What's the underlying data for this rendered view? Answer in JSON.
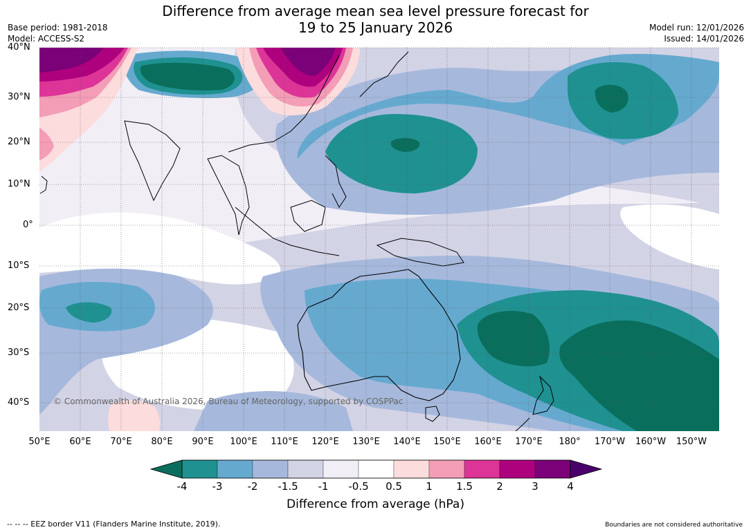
{
  "title_line1": "Difference from average mean sea level pressure forecast for",
  "title_line2": "19 to 25 January 2026",
  "base_period": "Base period: 1981-2018",
  "model": "Model: ACCESS-S2",
  "model_run": "Model run: 12/01/2026",
  "issued": "Issued: 14/01/2026",
  "copyright": "© Commonwealth of Australia 2026, Bureau of Meteorology, supported by COSPPac",
  "lat_labels": [
    "40°N",
    "30°N",
    "20°N",
    "10°N",
    "0°",
    "10°S",
    "20°S",
    "30°S",
    "40°S"
  ],
  "lon_labels": [
    "50°E",
    "60°E",
    "70°E",
    "80°E",
    "90°E",
    "100°E",
    "110°E",
    "120°E",
    "130°E",
    "140°E",
    "150°E",
    "160°E",
    "170°E",
    "180°",
    "170°W",
    "160°W",
    "150°W"
  ],
  "colorbar": {
    "title": "Difference from average (hPa)",
    "ticks": [
      "-4",
      "-3",
      "-2",
      "-1.5",
      "-1",
      "-0.5",
      "0.5",
      "1",
      "1.5",
      "2",
      "3",
      "4"
    ],
    "colors": [
      "#0a6e5c",
      "#1f9191",
      "#66a9cf",
      "#a6b9dc",
      "#d3d3e6",
      "#f1eef6",
      "#ffffff",
      "#fcdcdc",
      "#f49db7",
      "#dd3497",
      "#ae017e",
      "#7a0177",
      "#49006a"
    ]
  },
  "footer_left": "--  --  -- EEZ border V11 (Flanders Marine Institute, 2019).",
  "footer_right": "Boundaries are not considered authoritative"
}
